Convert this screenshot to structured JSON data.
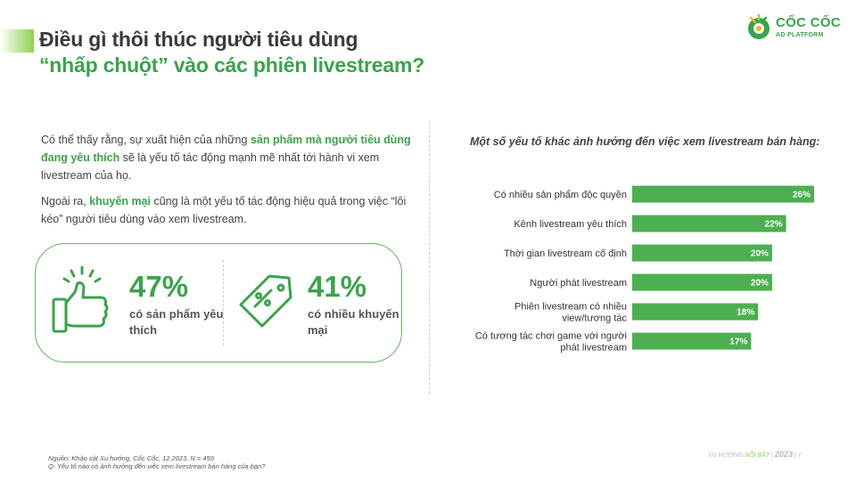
{
  "header": {
    "title_line1": "Điều gì thôi thúc người tiêu dùng",
    "title_line2": "“nhấp chuột” vào các phiên livestream?"
  },
  "logo": {
    "brand": "CỐC CỐC",
    "sub": "AD PLATFORM"
  },
  "intro": {
    "p1_pre": "Có thể thấy rằng, sự xuất hiện của những ",
    "p1_bold": "sản phẩm mà người tiêu dùng đang yêu thích",
    "p1_post": " sẽ là yếu tố tác động mạnh mẽ nhất tới hành vi xem livestream của họ.",
    "p2_pre": "Ngoài ra, ",
    "p2_bold": "khuyến mại",
    "p2_post": " cũng là một yếu tố tác động hiệu quả trong việc “lôi kéo” người tiêu dùng vào xem livestream."
  },
  "stats": [
    {
      "value": "47%",
      "label": "có sản phẩm yêu thích",
      "icon": "thumbs-up-icon"
    },
    {
      "value": "41%",
      "label": "có nhiều khuyến mại",
      "icon": "price-tag-icon"
    }
  ],
  "colors": {
    "accent": "#3aa44a",
    "bar": "#4caf50",
    "light_green": "#8fd14f"
  },
  "chart_data": {
    "type": "bar",
    "orientation": "horizontal",
    "title": "Một số yếu tố khác ảnh hưởng đến việc xem livestream bán hàng:",
    "categories": [
      "Có nhiều sản phẩm độc quyền",
      "Kênh livestream yêu thích",
      "Thời gian livestream cố định",
      "Người phát livestream",
      "Phiên livestream có nhiều view/tương tác",
      "Có tương tác chơi game với người phát livestream"
    ],
    "category_lines": [
      [
        "Có nhiều sản phẩm độc quyền"
      ],
      [
        "Kênh livestream yêu thích"
      ],
      [
        "Thời gian livestream cố định"
      ],
      [
        "Người phát livestream"
      ],
      [
        "Phiên livestream có nhiều",
        "view/tương tác"
      ],
      [
        "Có tương tác chơi game với người",
        "phát livestream"
      ]
    ],
    "values": [
      26,
      22,
      20,
      20,
      18,
      17
    ],
    "value_labels": [
      "26%",
      "22%",
      "20%",
      "20%",
      "18%",
      "17%"
    ],
    "xlim": [
      0,
      26
    ],
    "unit": "%",
    "grid": false
  },
  "footer": {
    "source": "Nguồn: Khảo sát Xu hướng, Cốc Cốc, 12.2023, N = 459",
    "question": "Q: Yếu tố nào có ảnh hưởng đến việc xem livestream bán hàng của bạn?",
    "right_label": "XU HƯỚNG",
    "right_highlight": "NỔI BẬT",
    "sep": "|",
    "year": "2023",
    "page": "7"
  }
}
